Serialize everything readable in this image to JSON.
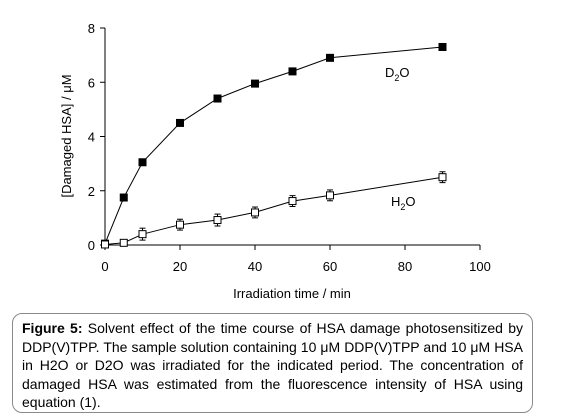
{
  "chart_data": {
    "type": "line",
    "xlabel": "Irradiation time / min",
    "ylabel": "[Damaged HSA] / μM",
    "xlim": [
      0,
      100
    ],
    "ylim": [
      0,
      8
    ],
    "x_ticks": [
      "0",
      "20",
      "40",
      "60",
      "80",
      "100"
    ],
    "y_ticks": [
      "0",
      "2",
      "4",
      "6",
      "8"
    ],
    "grid": false,
    "series": [
      {
        "name": "D2O",
        "label_main": "D",
        "label_sub": "2",
        "label_rest": "O",
        "marker": "filled-square",
        "color": "#000000",
        "x": [
          0,
          5,
          10,
          20,
          30,
          40,
          50,
          60,
          90
        ],
        "y": [
          0.05,
          1.75,
          3.05,
          4.5,
          5.4,
          5.95,
          6.4,
          6.9,
          7.3
        ]
      },
      {
        "name": "H2O",
        "label_main": "H",
        "label_sub": "2",
        "label_rest": "O",
        "marker": "open-square",
        "color": "#000000",
        "x": [
          0,
          5,
          10,
          20,
          30,
          40,
          50,
          60,
          90
        ],
        "y": [
          0.02,
          0.08,
          0.4,
          0.75,
          0.92,
          1.2,
          1.62,
          1.83,
          2.5
        ],
        "error": [
          0.05,
          0.1,
          0.22,
          0.2,
          0.22,
          0.2,
          0.2,
          0.2,
          0.2
        ]
      }
    ]
  },
  "caption": {
    "label": "Figure 5:",
    "text": " Solvent effect of the time course of HSA damage photosensitized by DDP(V)TPP. The sample solution containing 10 μM DDP(V)TPP and 10 μM HSA in H2O or D2O was irradiated for the indicated period. The concentration of damaged HSA was estimated from the fluorescence intensity of HSA using equation (1)."
  }
}
